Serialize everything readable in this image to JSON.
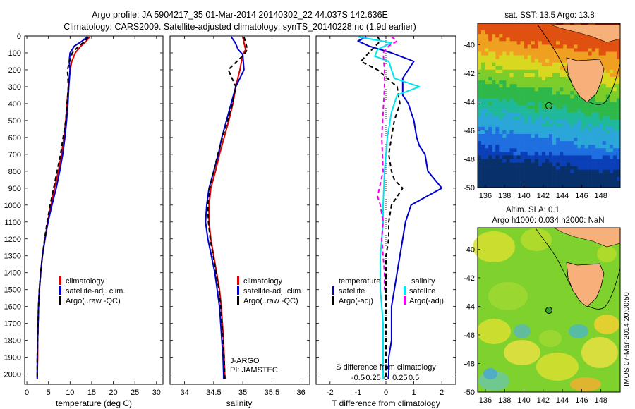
{
  "header": {
    "line1": "Argo profile: JA 5904217_35 01-Mar-2014 20140302_22 44.037S 142.636E",
    "line2": "Climatology: CARS2009. Satellite-adjusted climatology: synTS_20140228.nc (1.9d earlier)"
  },
  "colors": {
    "climatology": "#dd0000",
    "satellite": "#0000cc",
    "argo": "#000000",
    "sal_satellite": "#00e5ee",
    "sal_argo": "#ee00ee"
  },
  "maps": {
    "sst_title": "sat. SST: 13.5 Argo: 13.8",
    "sla_title1": "Altim. SLA: 0.1",
    "sla_title2": "Argo h1000: 0.034 h2000: NaN",
    "credit": "IMOS 07-Mar-2014 20:00:50",
    "xticks": [
      "136",
      "138",
      "140",
      "142",
      "144",
      "146",
      "148"
    ],
    "yticks": [
      "-40",
      "-42",
      "-44",
      "-46",
      "-48",
      "-50"
    ]
  },
  "chart_data": [
    {
      "type": "line",
      "title": "",
      "xlabel": "temperature (deg C)",
      "ylabel": "",
      "xlim": [
        -0.5,
        31.5
      ],
      "ylim": [
        2060,
        0
      ],
      "xticks": [
        "0",
        "5",
        "10",
        "15",
        "20",
        "25",
        "30"
      ],
      "yticks": [
        "0",
        "100",
        "200",
        "300",
        "400",
        "500",
        "600",
        "700",
        "800",
        "900",
        "1000",
        "1100",
        "1200",
        "1300",
        "1400",
        "1500",
        "1600",
        "1700",
        "1800",
        "1900",
        "2000"
      ],
      "legend": [
        "climatology",
        "satellite-adj. clim.",
        "Argo(..raw -QC)"
      ],
      "legend_position": "lower-right",
      "series": [
        {
          "name": "climatology",
          "x": [
            14.5,
            13.8,
            12.5,
            11.2,
            10.4,
            10.0,
            9.6,
            9.3,
            9.0,
            8.6,
            8.0,
            7.3,
            6.4,
            5.6,
            4.8,
            4.2,
            3.6,
            3.2,
            2.9,
            2.7,
            2.6,
            2.5,
            2.5,
            2.4,
            2.4
          ],
          "y": [
            5,
            30,
            60,
            100,
            150,
            200,
            300,
            400,
            500,
            600,
            700,
            800,
            900,
            1000,
            1100,
            1200,
            1300,
            1400,
            1500,
            1600,
            1700,
            1800,
            1900,
            2000,
            2030
          ]
        },
        {
          "name": "satellite-adj. clim.",
          "x": [
            14.0,
            12.8,
            11.0,
            10.0,
            9.8,
            10.0,
            9.7,
            9.5,
            9.2,
            8.8,
            8.3,
            7.6,
            6.8,
            5.8,
            4.9,
            4.2,
            3.6,
            3.2,
            2.9,
            2.7,
            2.6,
            2.5,
            2.4,
            2.4,
            2.4
          ],
          "y": [
            5,
            30,
            60,
            100,
            150,
            200,
            300,
            400,
            500,
            600,
            700,
            800,
            900,
            1000,
            1100,
            1200,
            1300,
            1400,
            1500,
            1600,
            1700,
            1800,
            1900,
            2000,
            2030
          ]
        },
        {
          "name": "Argo(..raw -QC)",
          "x": [
            14.2,
            13.5,
            12.0,
            10.5,
            9.9,
            9.4,
            9.6,
            9.3,
            9.0,
            8.4,
            7.8,
            7.0,
            6.2,
            5.4,
            4.7,
            4.1,
            3.6,
            3.2,
            2.9,
            2.7,
            2.6,
            2.5,
            2.4,
            2.4,
            2.4
          ],
          "y": [
            5,
            30,
            60,
            100,
            150,
            200,
            300,
            400,
            500,
            600,
            700,
            800,
            900,
            1000,
            1100,
            1200,
            1300,
            1400,
            1500,
            1600,
            1700,
            1800,
            1900,
            2000,
            2030
          ]
        }
      ]
    },
    {
      "type": "line",
      "title": "",
      "xlabel": "salinity",
      "ylabel": "",
      "xlim": [
        33.75,
        36.15
      ],
      "ylim": [
        2060,
        0
      ],
      "xticks": [
        "34",
        "34.5",
        "35",
        "35.5",
        "36"
      ],
      "legend": [
        "climatology",
        "satellite-adj. clim.",
        "Argo(..raw -QC)"
      ],
      "legend_position": "lower-right",
      "annotation": [
        "J-ARGO",
        "PI: JAMSTEC"
      ],
      "series": [
        {
          "name": "climatology",
          "x": [
            35.0,
            35.02,
            35.05,
            35.0,
            34.95,
            34.88,
            34.83,
            34.76,
            34.68,
            34.6,
            34.53,
            34.45,
            34.42,
            34.42,
            34.45,
            34.5,
            34.55,
            34.6,
            34.63,
            34.65,
            34.67,
            34.68,
            34.69,
            34.7
          ],
          "y": [
            5,
            40,
            80,
            110,
            200,
            300,
            400,
            500,
            600,
            700,
            800,
            900,
            1000,
            1100,
            1200,
            1300,
            1400,
            1500,
            1600,
            1700,
            1800,
            1900,
            2000,
            2030
          ]
        },
        {
          "name": "satellite-adj. clim.",
          "x": [
            34.8,
            34.87,
            34.92,
            35.0,
            35.02,
            34.88,
            34.8,
            34.72,
            34.64,
            34.58,
            34.5,
            34.42,
            34.38,
            34.36,
            34.4,
            34.46,
            34.52,
            34.56,
            34.6,
            34.62,
            34.64,
            34.66,
            34.67,
            34.67
          ],
          "y": [
            5,
            40,
            80,
            110,
            200,
            300,
            400,
            500,
            600,
            700,
            800,
            900,
            1000,
            1100,
            1200,
            1300,
            1400,
            1500,
            1600,
            1700,
            1800,
            1900,
            2000,
            2030
          ]
        },
        {
          "name": "Argo(..raw -QC)",
          "x": [
            35.02,
            35.05,
            35.08,
            35.02,
            34.75,
            34.88,
            34.82,
            34.74,
            34.65,
            34.57,
            34.5,
            34.43,
            34.4,
            34.41,
            34.44,
            34.49,
            34.54,
            34.59,
            34.62,
            34.64,
            34.66,
            34.68,
            34.69,
            34.69
          ],
          "y": [
            5,
            40,
            80,
            110,
            200,
            300,
            400,
            500,
            600,
            700,
            800,
            900,
            1000,
            1100,
            1200,
            1300,
            1400,
            1500,
            1600,
            1700,
            1800,
            1900,
            2000,
            2030
          ]
        }
      ]
    },
    {
      "type": "line",
      "title": "",
      "xlabel": "T difference from climatology",
      "xlabel2": "S difference from climatology",
      "xlim": [
        -2.5,
        2.5
      ],
      "ylim": [
        2060,
        0
      ],
      "xticks": [
        "-2",
        "-1",
        "0",
        "1",
        "2"
      ],
      "xticks_s": [
        "-0.5",
        "-0.25",
        "0",
        "0.25",
        "0.5"
      ],
      "legend_headers": [
        "temperature",
        "salinity"
      ],
      "legend": [
        "satellite",
        "Argo(-adj)",
        "satellite",
        "Argo(-adj)"
      ],
      "legend_position": "lower-center",
      "series": [
        {
          "name": "satellite",
          "x": [
            -0.7,
            -1.0,
            -0.6,
            -0.2,
            0.2,
            1.0,
            0.6,
            0.6,
            0.8,
            1.0,
            1.1,
            1.2,
            1.4,
            1.5,
            2.0,
            0.9,
            0.7,
            0.6,
            0.5,
            0.4,
            0.3,
            0.2,
            0.2,
            0.2,
            0.1,
            0.1
          ],
          "y": [
            5,
            30,
            60,
            80,
            100,
            150,
            250,
            350,
            400,
            500,
            600,
            650,
            700,
            800,
            900,
            1000,
            1100,
            1200,
            1300,
            1400,
            1500,
            1600,
            1700,
            1800,
            1900,
            2030
          ]
        },
        {
          "name": "Argo(-adj)",
          "x": [
            -0.3,
            -0.2,
            -0.5,
            -0.9,
            -0.3,
            0.4,
            0.5,
            0.3,
            0.2,
            0.1,
            0.2,
            0.3,
            0.6,
            0.2,
            0.1,
            0.1,
            0.0,
            0.0,
            0.0,
            0.0,
            0.0,
            0.0,
            0.0,
            0.0,
            0.0
          ],
          "y": [
            5,
            30,
            80,
            150,
            200,
            300,
            400,
            500,
            600,
            700,
            800,
            850,
            900,
            1000,
            1100,
            1200,
            1300,
            1400,
            1500,
            1600,
            1700,
            1800,
            1900,
            2000,
            2030
          ]
        },
        {
          "name": "satellite",
          "x": [
            -1.0,
            0.2,
            -0.3,
            -0.4,
            0.1,
            0.3,
            1.2,
            0.4,
            0.2,
            0.05,
            -0.05,
            -0.1,
            -0.1,
            -0.15,
            -0.2,
            -0.2,
            -0.2,
            -0.15,
            -0.1,
            -0.1,
            -0.1
          ],
          "y": [
            5,
            40,
            80,
            120,
            150,
            250,
            300,
            350,
            450,
            600,
            800,
            1000,
            1100,
            1200,
            1300,
            1400,
            1500,
            1600,
            1700,
            1900,
            2030
          ]
        },
        {
          "name": "Argo(-adj)",
          "x": [
            0.2,
            0.4,
            0.1,
            -0.1,
            -0.05,
            -0.05,
            -0.1,
            -0.15,
            -0.1,
            -0.3,
            -0.2,
            -0.1,
            -0.15,
            -0.1,
            -0.05,
            -0.05
          ],
          "y": [
            5,
            30,
            60,
            100,
            200,
            300,
            450,
            600,
            800,
            950,
            1000,
            1100,
            1200,
            1300,
            1400,
            1500
          ]
        }
      ]
    }
  ]
}
